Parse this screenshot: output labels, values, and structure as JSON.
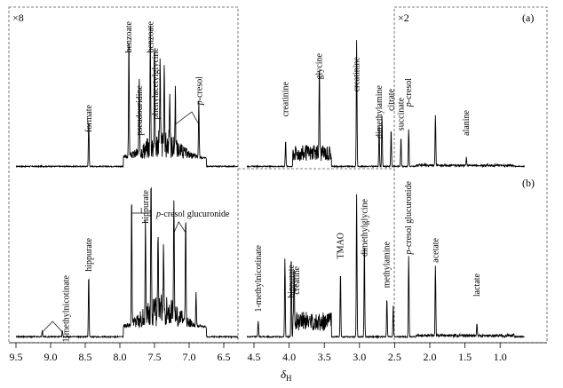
{
  "figure": {
    "panel_a": "(a)",
    "panel_b": "(b)",
    "scale_left": "×8",
    "scale_right": "×2",
    "x_axis_symbol": "δ",
    "x_axis_sub": "H",
    "colors": {
      "line": "#000000",
      "frame": "#555555"
    }
  },
  "chart_data": {
    "type": "line",
    "title": "",
    "xlabel": "δH",
    "ylabel": "",
    "xlim": [
      9.5,
      0.5
    ],
    "x_reversed": true,
    "x_ticks": [
      "9.5",
      "9.0",
      "8.5",
      "8.0",
      "7.5",
      "7.0",
      "6.5",
      "4.5",
      "4.0",
      "3.5",
      "3.0",
      "2.5",
      "2.0",
      "1.5",
      "1.0"
    ],
    "x_tick_values": [
      9.5,
      9.0,
      8.5,
      8.0,
      7.5,
      7.0,
      6.5,
      4.5,
      4.0,
      3.5,
      3.0,
      2.5,
      2.0,
      1.5,
      1.0
    ],
    "series": [
      {
        "name": "spectrum (a)",
        "peaks": [
          {
            "ppm": 8.45,
            "h": 0.35,
            "label": "formate"
          },
          {
            "ppm": 7.87,
            "h": 0.92,
            "label": "benzoate"
          },
          {
            "ppm": 7.72,
            "h": 0.5,
            "label": "pseudouridine"
          },
          {
            "ppm": 7.56,
            "h": 0.88,
            "label": "benzoate"
          },
          {
            "ppm": 7.5,
            "h": 0.78,
            "label": "phenylacetylglycine"
          },
          {
            "ppm": 7.42,
            "h": 0.62,
            "label": ""
          },
          {
            "ppm": 7.36,
            "h": 0.55,
            "label": ""
          },
          {
            "ppm": 7.28,
            "h": 0.4,
            "label": ""
          },
          {
            "ppm": 7.2,
            "h": 0.42,
            "label": "p-cresol"
          },
          {
            "ppm": 6.86,
            "h": 0.42,
            "label": "p-cresol"
          },
          {
            "ppm": 4.05,
            "h": 0.2,
            "label": "creatinine"
          },
          {
            "ppm": 3.57,
            "h": 0.68,
            "label": "glycine"
          },
          {
            "ppm": 3.04,
            "h": 0.95,
            "label": "creatinine"
          },
          {
            "ppm": 2.72,
            "h": 0.3,
            "label": "dimethylamine"
          },
          {
            "ppm": 2.68,
            "h": 0.38,
            "label": ""
          },
          {
            "ppm": 2.55,
            "h": 0.28,
            "label": "citrate"
          },
          {
            "ppm": 2.41,
            "h": 0.22,
            "label": "succinate"
          },
          {
            "ppm": 2.3,
            "h": 0.28,
            "label": "p-cresol"
          },
          {
            "ppm": 1.92,
            "h": 0.38,
            "label": ""
          },
          {
            "ppm": 1.48,
            "h": 0.06,
            "label": "alanine"
          }
        ]
      },
      {
        "name": "spectrum (b)",
        "peaks": [
          {
            "ppm": 9.12,
            "h": 0.04,
            "label": "1-methylnicotinate"
          },
          {
            "ppm": 8.83,
            "h": 0.04,
            "label": "1-methylnicotinate"
          },
          {
            "ppm": 8.45,
            "h": 0.4,
            "label": "hippurate"
          },
          {
            "ppm": 7.83,
            "h": 0.85,
            "label": "hippurate"
          },
          {
            "ppm": 7.63,
            "h": 0.62,
            "label": "hippurate"
          },
          {
            "ppm": 7.55,
            "h": 0.8,
            "label": "hippurate"
          },
          {
            "ppm": 7.45,
            "h": 0.55,
            "label": ""
          },
          {
            "ppm": 7.37,
            "h": 0.48,
            "label": ""
          },
          {
            "ppm": 7.22,
            "h": 0.78,
            "label": "p-cresol glucuronide"
          },
          {
            "ppm": 7.05,
            "h": 0.7,
            "label": "p-cresol glucuronide"
          },
          {
            "ppm": 6.9,
            "h": 0.22,
            "label": ""
          },
          {
            "ppm": 4.44,
            "h": 0.1,
            "label": "1-methylnicotinate"
          },
          {
            "ppm": 4.06,
            "h": 0.5,
            "label": "creatine"
          },
          {
            "ppm": 3.97,
            "h": 0.52,
            "label": "hippurate"
          },
          {
            "ppm": 3.93,
            "h": 0.4,
            "label": "creatine"
          },
          {
            "ppm": 3.27,
            "h": 0.42,
            "label": "TMAO"
          },
          {
            "ppm": 3.04,
            "h": 0.92,
            "label": ""
          },
          {
            "ppm": 2.93,
            "h": 0.62,
            "label": "dimethylglycine"
          },
          {
            "ppm": 2.61,
            "h": 0.25,
            "label": "methylamine"
          },
          {
            "ppm": 2.52,
            "h": 0.2,
            "label": ""
          },
          {
            "ppm": 2.3,
            "h": 0.52,
            "label": "p-cresol glucuronide"
          },
          {
            "ppm": 1.92,
            "h": 0.45,
            "label": "acetate"
          },
          {
            "ppm": 1.33,
            "h": 0.08,
            "label": "lactate"
          }
        ]
      }
    ]
  }
}
